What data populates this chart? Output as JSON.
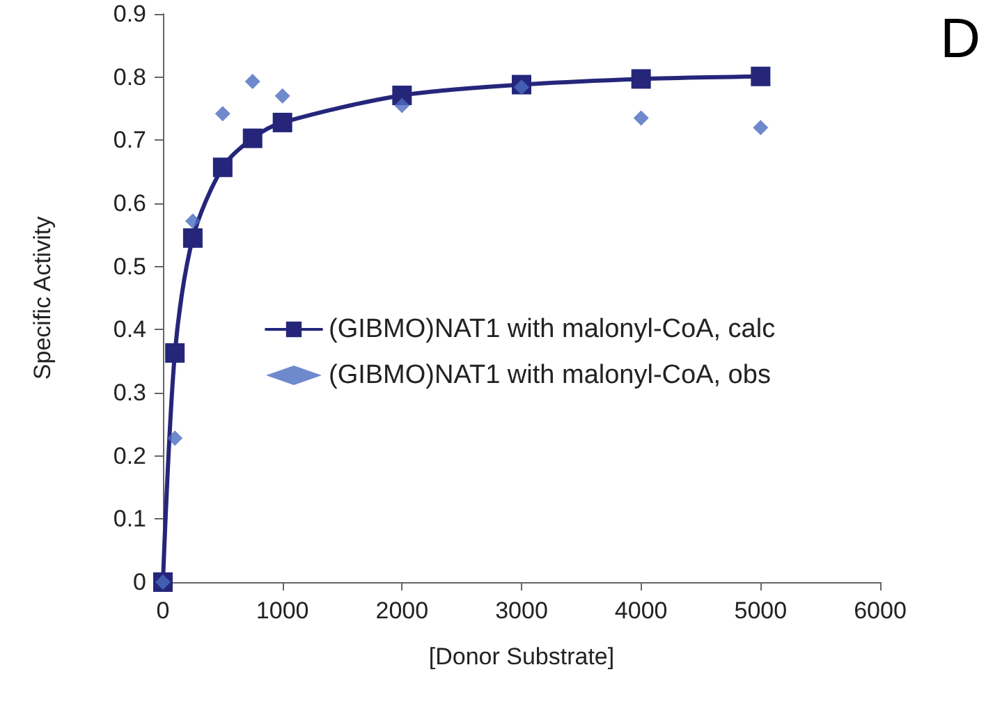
{
  "chart_data": {
    "type": "line",
    "xlabel": "[Donor Substrate]",
    "ylabel": "Specific Activity",
    "annotations": [
      "D"
    ],
    "x": [
      0,
      100,
      250,
      500,
      750,
      1000,
      2000,
      3000,
      4000,
      5000
    ],
    "series": [
      {
        "name": "(GIBMO)NAT1 with malonyl-CoA, calc",
        "color": "#25267a",
        "marker": "square",
        "values": [
          0,
          0.363,
          0.545,
          0.657,
          0.703,
          0.728,
          0.771,
          0.788,
          0.797,
          0.801
        ]
      },
      {
        "name": "(GIBMO)NAT1 with malonyl-CoA, obs",
        "color": "#4a6cbf",
        "type": "scatter",
        "marker": "diamond",
        "values": [
          0,
          0.228,
          0.572,
          0.742,
          0.793,
          0.77,
          0.755,
          0.784,
          0.735,
          0.72
        ]
      }
    ],
    "xlim": [
      0,
      6000
    ],
    "xticks": [
      0,
      1000,
      2000,
      3000,
      4000,
      5000,
      6000
    ],
    "ylim": [
      0,
      0.9
    ],
    "yticks": [
      0,
      0.1,
      0.2,
      0.3,
      0.4,
      0.5,
      0.6,
      0.7,
      0.8,
      0.9
    ],
    "grid": false,
    "legend": "right",
    "line_style": "solid"
  }
}
